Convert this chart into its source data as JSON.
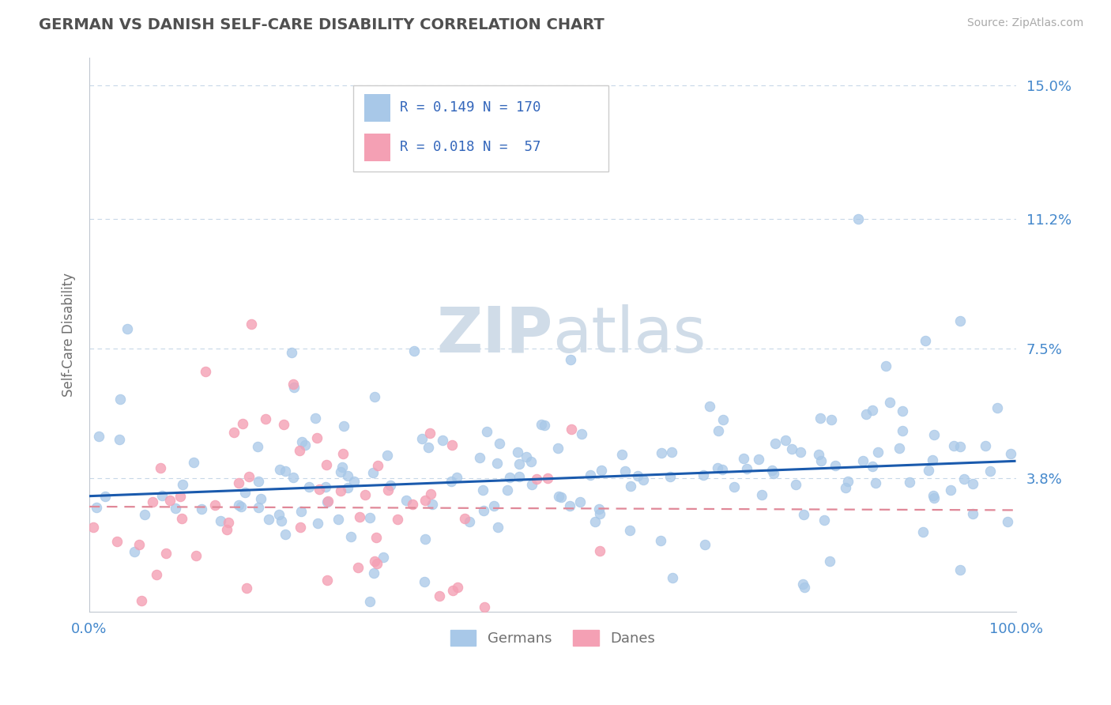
{
  "title": "GERMAN VS DANISH SELF-CARE DISABILITY CORRELATION CHART",
  "source": "Source: ZipAtlas.com",
  "ylabel": "Self-Care Disability",
  "xlim": [
    0.0,
    1.0
  ],
  "ylim": [
    0.0,
    0.158
  ],
  "yticks": [
    0.038,
    0.075,
    0.112,
    0.15
  ],
  "ytick_labels": [
    "3.8%",
    "7.5%",
    "11.2%",
    "15.0%"
  ],
  "german_R": 0.149,
  "german_N": 170,
  "danish_R": 0.018,
  "danish_N": 57,
  "german_color": "#a8c8e8",
  "danish_color": "#f4a0b4",
  "german_line_color": "#1a5aad",
  "danish_line_color": "#e08898",
  "background_color": "#ffffff",
  "grid_color": "#c8d8e8",
  "grid_color2": "#d8d8d8",
  "title_color": "#505050",
  "axis_label_color": "#707070",
  "tick_label_color": "#4488cc",
  "watermark_color": "#d0dce8",
  "legend_R_color": "#3366bb"
}
